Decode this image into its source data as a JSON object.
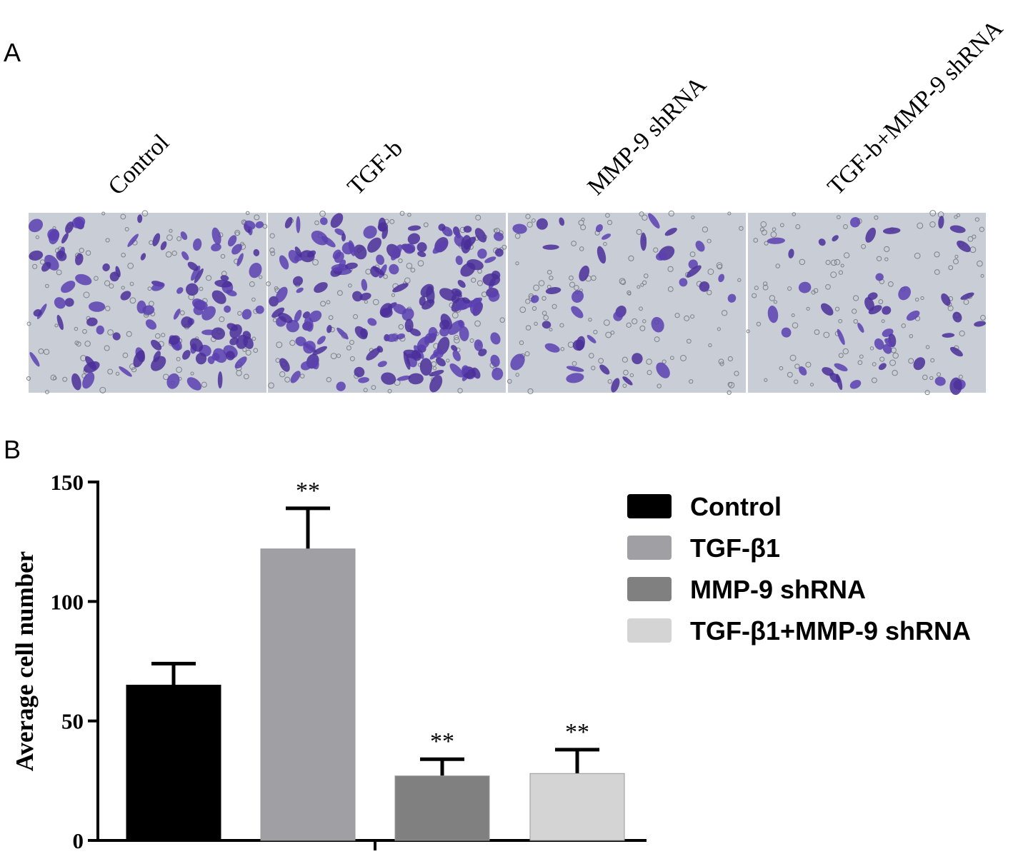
{
  "panels": {
    "a_label": "A",
    "b_label": "B",
    "image_labels": [
      "Control",
      "TGF-b",
      "MMP-9 shRNA",
      "TGF-b+MMP-9 shRNA"
    ]
  },
  "chart_data": {
    "type": "bar",
    "ylabel": "Average cell number",
    "ylim": [
      0,
      150
    ],
    "yticks": [
      0,
      50,
      100,
      150
    ],
    "series": [
      {
        "name": "Control",
        "color": "#000000",
        "values": [
          65
        ],
        "errors": [
          9
        ],
        "annotation": null
      },
      {
        "name": "TGF-β1",
        "color": "#a0a0a4",
        "values": [
          122
        ],
        "errors": [
          17
        ],
        "annotation": "**"
      },
      {
        "name": "MMP-9 shRNA",
        "color": "#808080",
        "values": [
          27
        ],
        "errors": [
          7
        ],
        "annotation": "**"
      },
      {
        "name": "TGF-β1+MMP-9 shRNA",
        "color": "#d4d4d4",
        "values": [
          28
        ],
        "errors": [
          10
        ],
        "annotation": "**"
      }
    ],
    "legend": "upper right"
  }
}
